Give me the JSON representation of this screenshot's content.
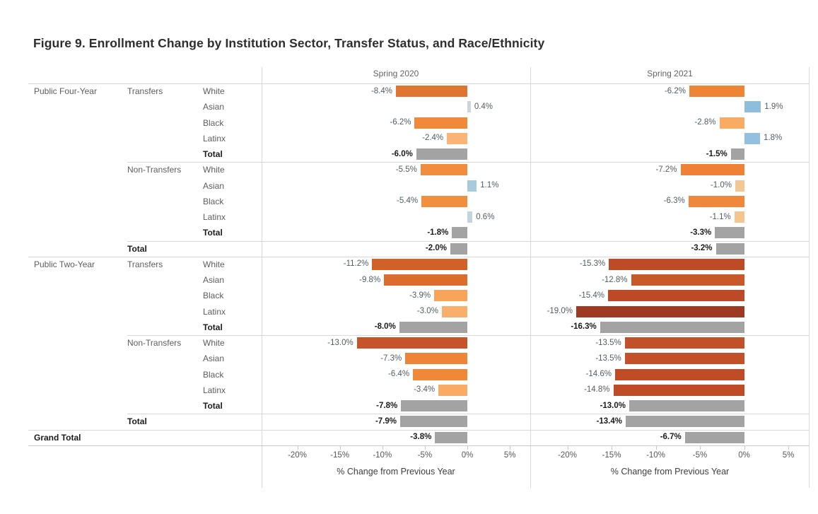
{
  "title": "Figure 9. Enrollment Change by Institution Sector, Transfer Status, and Race/Ethnicity",
  "chart_data": {
    "type": "bar",
    "orientation": "horizontal",
    "xlabel": "% Change from Previous Year",
    "panels": [
      {
        "header": "Spring 2020"
      },
      {
        "header": "Spring 2021"
      }
    ],
    "axis": {
      "min": -24.2,
      "max": 7.4,
      "tick_values": [
        -20,
        -15,
        -10,
        -5,
        0,
        5
      ],
      "tick_labels": [
        "-20%",
        "-15%",
        "-10%",
        "-5%",
        "0%",
        "5%"
      ]
    },
    "total_color": "#a3a3a3",
    "positive_color": "#92bfde",
    "negative_color_range": [
      "#f9b476",
      "#9d3a21"
    ],
    "rows": [
      {
        "sector": "Public Four-Year",
        "status": "Transfers",
        "race": "White",
        "bold": false,
        "separator": "none",
        "values": [
          -8.4,
          -6.2
        ],
        "labels": [
          "-8.4%",
          "-6.2%"
        ],
        "colors": [
          "#e0752f",
          "#ef8434"
        ]
      },
      {
        "sector": "",
        "status": "",
        "race": "Asian",
        "bold": false,
        "separator": "none",
        "values": [
          0.4,
          1.9
        ],
        "labels": [
          "0.4%",
          "1.9%"
        ],
        "colors": [
          "#ccd5da",
          "#8fbedd"
        ]
      },
      {
        "sector": "",
        "status": "",
        "race": "Black",
        "bold": false,
        "separator": "none",
        "values": [
          -6.2,
          -2.8
        ],
        "labels": [
          "-6.2%",
          "-2.8%"
        ],
        "colors": [
          "#f08a3a",
          "#f9ab64"
        ]
      },
      {
        "sector": "",
        "status": "",
        "race": "Latinx",
        "bold": false,
        "separator": "none",
        "values": [
          -2.4,
          1.8
        ],
        "labels": [
          "-2.4%",
          "1.8%"
        ],
        "colors": [
          "#f9b476",
          "#92c0de"
        ]
      },
      {
        "sector": "",
        "status": "",
        "race": "Total",
        "bold": true,
        "separator": "none",
        "values": [
          -6.0,
          -1.5
        ],
        "labels": [
          "-6.0%",
          "-1.5%"
        ],
        "colors": [
          "#a3a3a3",
          "#a3a3a3"
        ]
      },
      {
        "sector": "",
        "status": "Non-Transfers",
        "race": "White",
        "bold": false,
        "separator": "status",
        "values": [
          -5.5,
          -7.2
        ],
        "labels": [
          "-5.5%",
          "-7.2%"
        ],
        "colors": [
          "#f28d3d",
          "#ee8135"
        ]
      },
      {
        "sector": "",
        "status": "",
        "race": "Asian",
        "bold": false,
        "separator": "none",
        "values": [
          1.1,
          -1.0
        ],
        "labels": [
          "1.1%",
          "-1.0%"
        ],
        "colors": [
          "#a7cadf",
          "#f4c792"
        ]
      },
      {
        "sector": "",
        "status": "",
        "race": "Black",
        "bold": false,
        "separator": "none",
        "values": [
          -5.4,
          -6.3
        ],
        "labels": [
          "-5.4%",
          "-6.3%"
        ],
        "colors": [
          "#f28f3e",
          "#f0873a"
        ]
      },
      {
        "sector": "",
        "status": "",
        "race": "Latinx",
        "bold": false,
        "separator": "none",
        "values": [
          0.6,
          -1.1
        ],
        "labels": [
          "0.6%",
          "-1.1%"
        ],
        "colors": [
          "#c2d5de",
          "#f4c58e"
        ]
      },
      {
        "sector": "",
        "status": "",
        "race": "Total",
        "bold": true,
        "separator": "none",
        "values": [
          -1.8,
          -3.3
        ],
        "labels": [
          "-1.8%",
          "-3.3%"
        ],
        "colors": [
          "#a3a3a3",
          "#a3a3a3"
        ]
      },
      {
        "sector": "",
        "status": "Total",
        "race": "",
        "bold": true,
        "separator": "status",
        "values": [
          -2.0,
          -3.2
        ],
        "labels": [
          "-2.0%",
          "-3.2%"
        ],
        "colors": [
          "#a3a3a3",
          "#a3a3a3"
        ]
      },
      {
        "sector": "Public Two-Year",
        "status": "Transfers",
        "race": "White",
        "bold": false,
        "separator": "sector",
        "values": [
          -11.2,
          -15.3
        ],
        "labels": [
          "-11.2%",
          "-15.3%"
        ],
        "colors": [
          "#d26128",
          "#bc4b26"
        ]
      },
      {
        "sector": "",
        "status": "",
        "race": "Asian",
        "bold": false,
        "separator": "none",
        "values": [
          -9.8,
          -12.8
        ],
        "labels": [
          "-9.8%",
          "-12.8%"
        ],
        "colors": [
          "#dc6c2d",
          "#c85a2a"
        ]
      },
      {
        "sector": "",
        "status": "",
        "race": "Black",
        "bold": false,
        "separator": "none",
        "values": [
          -3.9,
          -15.4
        ],
        "labels": [
          "-3.9%",
          "-15.4%"
        ],
        "colors": [
          "#f8a55b",
          "#bc4a26"
        ]
      },
      {
        "sector": "",
        "status": "",
        "race": "Latinx",
        "bold": false,
        "separator": "none",
        "values": [
          -3.0,
          -19.0
        ],
        "labels": [
          "-3.0%",
          "-19.0%"
        ],
        "colors": [
          "#f9ae6a",
          "#9d3a21"
        ]
      },
      {
        "sector": "",
        "status": "",
        "race": "Total",
        "bold": true,
        "separator": "none",
        "values": [
          -8.0,
          -16.3
        ],
        "labels": [
          "-8.0%",
          "-16.3%"
        ],
        "colors": [
          "#a3a3a3",
          "#a3a3a3"
        ]
      },
      {
        "sector": "",
        "status": "Non-Transfers",
        "race": "White",
        "bold": false,
        "separator": "status",
        "values": [
          -13.0,
          -13.5
        ],
        "labels": [
          "-13.0%",
          "-13.5%"
        ],
        "colors": [
          "#c65329",
          "#c25028"
        ]
      },
      {
        "sector": "",
        "status": "",
        "race": "Asian",
        "bold": false,
        "separator": "none",
        "values": [
          -7.3,
          -13.5
        ],
        "labels": [
          "-7.3%",
          "-13.5%"
        ],
        "colors": [
          "#ed8438",
          "#c25028"
        ]
      },
      {
        "sector": "",
        "status": "",
        "race": "Black",
        "bold": false,
        "separator": "none",
        "values": [
          -6.4,
          -14.6
        ],
        "labels": [
          "-6.4%",
          "-14.6%"
        ],
        "colors": [
          "#f0883a",
          "#be4c27"
        ]
      },
      {
        "sector": "",
        "status": "",
        "race": "Latinx",
        "bold": false,
        "separator": "none",
        "values": [
          -3.4,
          -14.8
        ],
        "labels": [
          "-3.4%",
          "-14.8%"
        ],
        "colors": [
          "#f9aa64",
          "#be4c27"
        ]
      },
      {
        "sector": "",
        "status": "",
        "race": "Total",
        "bold": true,
        "separator": "none",
        "values": [
          -7.8,
          -13.0
        ],
        "labels": [
          "-7.8%",
          "-13.0%"
        ],
        "colors": [
          "#a3a3a3",
          "#a3a3a3"
        ]
      },
      {
        "sector": "",
        "status": "Total",
        "race": "",
        "bold": true,
        "separator": "status",
        "values": [
          -7.9,
          -13.4
        ],
        "labels": [
          "-7.9%",
          "-13.4%"
        ],
        "colors": [
          "#a3a3a3",
          "#a3a3a3"
        ]
      },
      {
        "sector": "Grand Total",
        "status": "",
        "race": "",
        "bold": true,
        "separator": "sector",
        "values": [
          -3.8,
          -6.7
        ],
        "labels": [
          "-3.8%",
          "-6.7%"
        ],
        "colors": [
          "#a3a3a3",
          "#a3a3a3"
        ]
      }
    ]
  }
}
